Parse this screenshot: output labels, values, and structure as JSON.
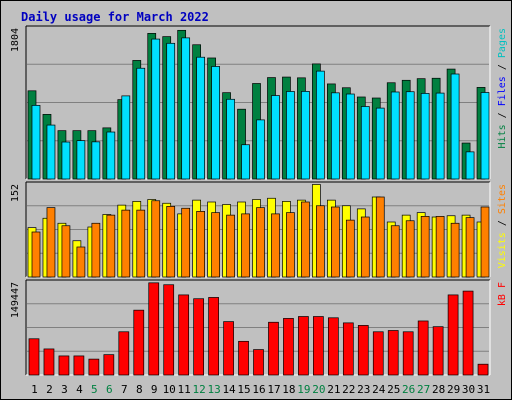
{
  "chart_data": {
    "type": "bar",
    "title": "Daily usage for March 2022",
    "categories": [
      "1",
      "2",
      "3",
      "4",
      "5",
      "6",
      "7",
      "8",
      "9",
      "10",
      "11",
      "12",
      "13",
      "14",
      "15",
      "16",
      "17",
      "18",
      "19",
      "20",
      "21",
      "22",
      "23",
      "24",
      "25",
      "26",
      "27",
      "28",
      "29",
      "30",
      "31"
    ],
    "weekend_days": [
      "5",
      "6",
      "12",
      "13",
      "19",
      "20",
      "26",
      "27"
    ],
    "panels": [
      {
        "id": "hits",
        "ymax_label": "1804",
        "ylim": [
          0,
          1804
        ],
        "legend": [
          {
            "label": "Pages",
            "color": "#00c0c0"
          },
          {
            "label": "Files",
            "color": "#0000ff"
          },
          {
            "label": "Hits",
            "color": "#008040"
          }
        ],
        "series": [
          {
            "name": "Hits",
            "color": "#008040",
            "values": [
              1040,
              762,
              570,
              570,
              570,
              603,
              936,
              1398,
              1717,
              1679,
              1753,
              1583,
              1427,
              1018,
              823,
              1126,
              1196,
              1202,
              1193,
              1357,
              1121,
              1076,
              967,
              955,
              1135,
              1164,
              1183,
              1188,
              1296,
              424,
              1080
            ]
          },
          {
            "name": "Files",
            "color": "#00e0ff",
            "values": [
              868,
              636,
              436,
              452,
              438,
              554,
              980,
              1306,
              1650,
              1600,
              1664,
              1436,
              1327,
              940,
              404,
              697,
              984,
              1032,
              1033,
              1272,
              1016,
              1002,
              855,
              836,
              1026,
              1029,
              1009,
              1013,
              1238,
              320,
              1020
            ]
          },
          {
            "name": "Pages",
            "color": "#00c0c0",
            "values": [
              0,
              0,
              0,
              0,
              0,
              0,
              0,
              0,
              0,
              0,
              0,
              0,
              0,
              0,
              0,
              0,
              0,
              0,
              0,
              0,
              0,
              0,
              0,
              0,
              0,
              0,
              0,
              0,
              0,
              0,
              0
            ]
          }
        ]
      },
      {
        "id": "visits",
        "ymax_label": "152",
        "ylim": [
          0,
          152
        ],
        "legend": [
          {
            "label": "Sites",
            "color": "#ff8000"
          },
          {
            "label": "Visits",
            "color": "#ffff00"
          }
        ],
        "series": [
          {
            "name": "Visits",
            "color": "#ffff00",
            "values": [
              79,
              94,
              86,
              58,
              80,
              100,
              115,
              121,
              124,
              118,
              101,
              123,
              120,
              116,
              120,
              124,
              126,
              121,
              123,
              148,
              123,
              114,
              109,
              128,
              88,
              99,
              103,
              96,
              98,
              99,
              88
            ]
          },
          {
            "name": "Sites",
            "color": "#ff8000",
            "values": [
              72,
              111,
              82,
              48,
              86,
              99,
              107,
              107,
              122,
              113,
              110,
              105,
              103,
              99,
              101,
              111,
              101,
              103,
              120,
              114,
              112,
              91,
              96,
              128,
              82,
              90,
              97,
              97,
              86,
              95,
              112
            ]
          }
        ]
      },
      {
        "id": "kbytes",
        "ymax_label": "149447",
        "ylim": [
          0,
          149447
        ],
        "legend": [
          {
            "label": "kB F",
            "color": "#ff0000"
          }
        ],
        "series": [
          {
            "name": "kB F",
            "color": "#ff0000",
            "values": [
              57000,
              41000,
              30000,
              30000,
              25000,
              32000,
              68000,
              102000,
              145000,
              142000,
              126000,
              120000,
              122000,
              84000,
              53000,
              40000,
              83000,
              89000,
              92000,
              92000,
              90000,
              82000,
              78000,
              68000,
              70000,
              68000,
              85000,
              76000,
              126000,
              132000,
              17000
            ]
          }
        ]
      }
    ]
  }
}
